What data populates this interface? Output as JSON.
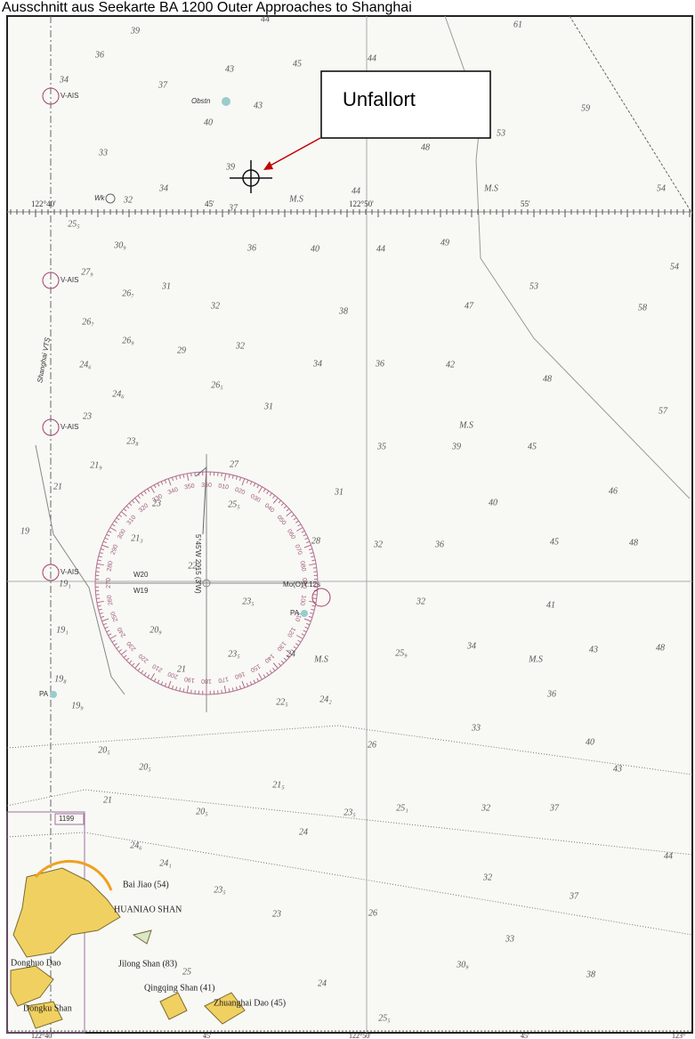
{
  "title": "Ausschnitt aus Seekarte BA 1200 Outer Approaches to Shanghai",
  "callout": "Unfallort",
  "graticule": {
    "top": [
      "122°40'",
      "45'",
      "122°50'",
      "55'"
    ],
    "bottom": [
      "122°40'",
      "45'",
      "122°50'",
      "45'",
      "123°"
    ]
  },
  "vts": "Shanghai VTS",
  "v_ais": [
    "V-AIS",
    "V-AIS",
    "V-AIS",
    "V-AIS"
  ],
  "chart_ref": "1199",
  "obstruction": "Obstn",
  "wreck": "Wk",
  "magnetic": "5°45'W 2015 (3'W)",
  "lights": [
    "Mo(O)Y.12s",
    "W20",
    "W19",
    "PA",
    "PA"
  ],
  "places": [
    "HUANIAO SHAN",
    "Bai Jiao (54)",
    "Jilong Shan (83)",
    "Qingqing Shan (41)",
    "Zhuanghai Dao (45)",
    "Donghuo Dao",
    "Dongku Shan"
  ],
  "compass_labels": [
    "360",
    "010",
    "020",
    "030",
    "040",
    "050",
    "060",
    "070",
    "080",
    "090",
    "100",
    "110",
    "120",
    "130",
    "140",
    "150",
    "160",
    "170",
    "180",
    "190",
    "200",
    "210",
    "220",
    "230",
    "240",
    "250",
    "260",
    "270",
    "280",
    "290",
    "300",
    "310",
    "320",
    "330",
    "340",
    "350"
  ],
  "soundings": [
    "39",
    "44",
    "61",
    "36",
    "43",
    "45",
    "44",
    "34",
    "37",
    "43",
    "59",
    "33",
    "40",
    "48",
    "53",
    "39",
    "34",
    "32",
    "44",
    "37",
    "54",
    "M.S",
    "M.S",
    "25₅",
    "30₉",
    "36",
    "40",
    "44",
    "49",
    "27₉",
    "31",
    "26₇",
    "53",
    "54",
    "32",
    "47",
    "38",
    "58",
    "26₇",
    "26₉",
    "29",
    "32",
    "24₆",
    "34",
    "36",
    "42",
    "48",
    "24₆",
    "26₅",
    "31",
    "57",
    "23",
    "M.S",
    "23₈",
    "35",
    "39",
    "45",
    "21₉",
    "27",
    "31",
    "46",
    "21",
    "23",
    "25₅",
    "40",
    "19",
    "21₃",
    "28",
    "32",
    "36",
    "45",
    "48",
    "22₇",
    "19₁",
    "23₅",
    "32",
    "41",
    "19₁",
    "20₉",
    "23₅",
    "24",
    "25₉",
    "34",
    "43",
    "48",
    "M.S",
    "M.S",
    "21",
    "19₈",
    "36",
    "19₉",
    "22₅",
    "24₂",
    "33",
    "40",
    "20₅",
    "26",
    "20₅",
    "43",
    "21₅",
    "21",
    "20₅",
    "23₅",
    "25₁",
    "32",
    "37",
    "24",
    "24₆",
    "24₁",
    "44",
    "32",
    "23₅",
    "37",
    "23",
    "26",
    "33",
    "30₉",
    "38",
    "25",
    "24",
    "25₅"
  ]
}
